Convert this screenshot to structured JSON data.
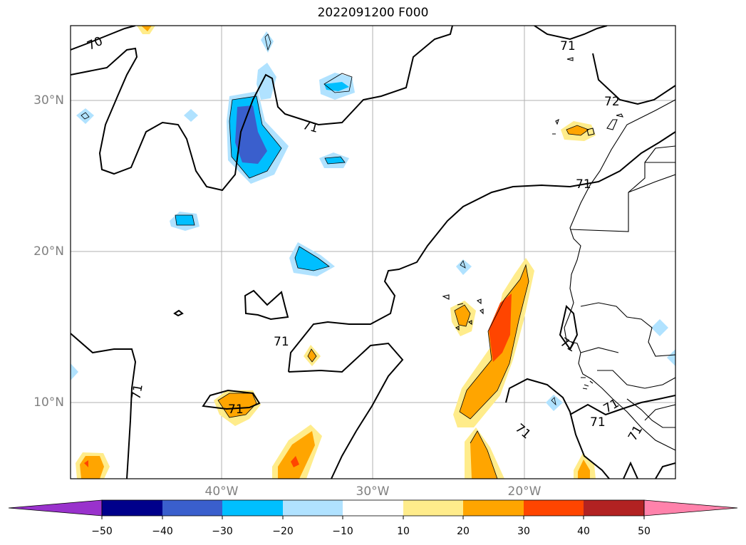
{
  "title": "2022091200 F000",
  "lat_labels": [
    "30°N",
    "20°N",
    "10°N"
  ],
  "lon_labels": [
    "40°W",
    "30°W",
    "20°W"
  ],
  "contour_labels": [
    "70",
    "71",
    "71",
    "71",
    "71",
    "71",
    "71",
    "71",
    "71",
    "71",
    "72",
    "71",
    "71",
    "71"
  ],
  "colorbar": {
    "ticks": [
      "−50",
      "−40",
      "−30",
      "−20",
      "−10",
      "10",
      "20",
      "30",
      "40",
      "50"
    ],
    "colors": [
      "#9932cc",
      "#00008b",
      "#3a5fcd",
      "#00bfff",
      "#b0e2ff",
      "#ffffff",
      "#ffec8b",
      "#ffa500",
      "#ff4500",
      "#b22222",
      "#ff82ab"
    ]
  }
}
